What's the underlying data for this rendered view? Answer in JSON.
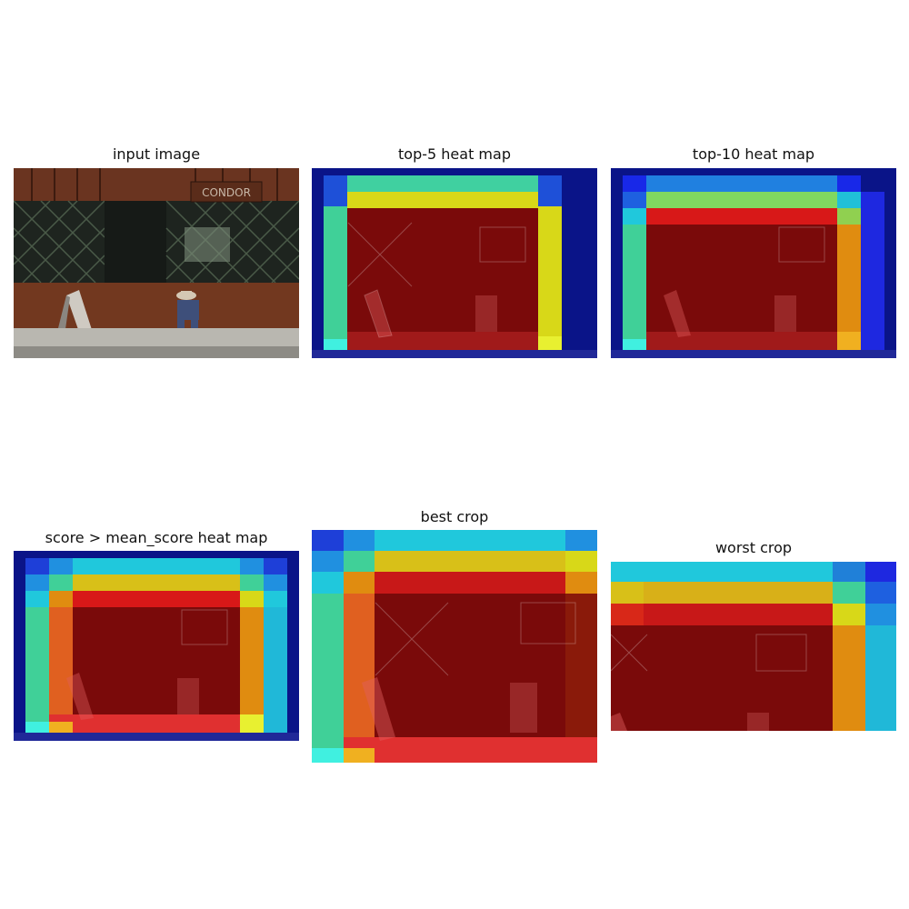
{
  "panels": [
    {
      "title": "input image"
    },
    {
      "title": "top-5 heat map"
    },
    {
      "title": "top-10 heat map"
    },
    {
      "title": "score > mean_score heat map"
    },
    {
      "title": "best crop"
    },
    {
      "title": "worst crop"
    }
  ],
  "photo_sign": "CONDOR",
  "colors": {
    "background": "#ffffff",
    "wood": "#6a3420",
    "window_dark": "#1e241f",
    "door": "#161a17",
    "sidewalk": "#b9b7b0",
    "heat_dark_blue": "#0a1488",
    "heat_blue": "#1e3fd8",
    "heat_cyan": "#20c8dc",
    "heat_green": "#40d098",
    "heat_yellow": "#d8d818",
    "heat_orange": "#e08c10",
    "heat_red": "#d81818",
    "heat_dark_red": "#7a0a0a"
  }
}
